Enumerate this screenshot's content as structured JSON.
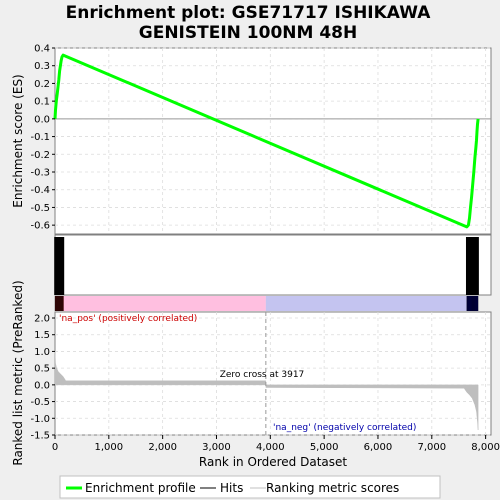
{
  "chart_data": {
    "type": "line",
    "title_line1": "Enrichment plot: GSE71717 ISHIKAWA",
    "title_line2": "GENISTEIN 100NM 48H",
    "top_panel": {
      "ylabel": "Enrichment score (ES)",
      "ylim": [
        -0.65,
        0.4
      ],
      "yticks": [
        0.4,
        0.3,
        0.2,
        0.1,
        0.0,
        -0.1,
        -0.2,
        -0.3,
        -0.4,
        -0.5,
        -0.6
      ],
      "ytick_labels": [
        "0.4",
        "0.3",
        "0.2",
        "0.1",
        "0.0",
        "-0.1",
        "-0.2",
        "-0.3",
        "-0.4",
        "-0.5",
        "-0.6"
      ],
      "series": [
        {
          "x": [
            0,
            10,
            25,
            40,
            55,
            70,
            85,
            100,
            115,
            130,
            150,
            7650,
            7680,
            7700,
            7720,
            7740,
            7760,
            7780,
            7800,
            7820,
            7830,
            7840,
            7850,
            7860
          ],
          "y": [
            0.0,
            0.05,
            0.1,
            0.14,
            0.18,
            0.22,
            0.27,
            0.3,
            0.33,
            0.35,
            0.36,
            -0.61,
            -0.6,
            -0.56,
            -0.5,
            -0.44,
            -0.37,
            -0.3,
            -0.22,
            -0.16,
            -0.12,
            -0.07,
            -0.03,
            0.0
          ]
        }
      ]
    },
    "hits_panel": {
      "hit_positions": [
        0,
        6,
        12,
        18,
        24,
        30,
        36,
        42,
        48,
        54,
        60,
        66,
        72,
        78,
        84,
        90,
        96,
        102,
        108,
        114,
        120,
        126,
        132,
        138,
        144,
        150,
        156,
        7650,
        7660,
        7670,
        7680,
        7690,
        7700,
        7710,
        7720,
        7730,
        7740,
        7750,
        7760,
        7770,
        7780,
        7790,
        7800,
        7810,
        7820,
        7830,
        7840,
        7850,
        7860
      ]
    },
    "bottom_panel": {
      "ylabel": "Ranked list metric (PreRanked)",
      "ylim": [
        -1.5,
        2.0
      ],
      "yticks": [
        2.0,
        1.5,
        1.0,
        0.5,
        0.0,
        -0.5,
        -1.0,
        -1.5
      ],
      "ytick_labels": [
        "2.0",
        "1.5",
        "1.0",
        "0.5",
        "0.0",
        "-0.5",
        "-1.0",
        "-1.5"
      ],
      "metric_x": [
        0,
        10,
        30,
        60,
        100,
        150,
        200,
        3917,
        3918,
        7600,
        7650,
        7700,
        7750,
        7800,
        7830,
        7850,
        7860
      ],
      "metric_y": [
        1.0,
        0.65,
        0.5,
        0.4,
        0.33,
        0.25,
        0.12,
        0.12,
        -0.08,
        -0.1,
        -0.22,
        -0.3,
        -0.4,
        -0.6,
        -0.8,
        -1.1,
        -1.35
      ],
      "pos_label": "'na_pos' (positively correlated)",
      "neg_label": "'na_neg' (negatively correlated)",
      "zero_cross_label": "Zero cross at 3917",
      "zero_cross": 3917
    },
    "xlabel": "Rank in Ordered Dataset",
    "xlim": [
      0,
      8100
    ],
    "xticks": [
      0,
      1000,
      2000,
      3000,
      4000,
      5000,
      6000,
      7000,
      8000
    ],
    "xtick_labels": [
      "0",
      "1,000",
      "2,000",
      "3,000",
      "4,000",
      "5,000",
      "6,000",
      "7,000",
      "8,000"
    ],
    "n_genes": 7860,
    "legend": {
      "entries": [
        "Enrichment profile",
        "Hits",
        "Ranking metric scores"
      ],
      "placement": "bottom"
    },
    "colors": {
      "profile": "#00ff00",
      "hits": "#000000",
      "metric": "#bebebe",
      "pos_text": "#cc0000",
      "neg_text": "#0000aa",
      "pos_band": "#ffbfe0",
      "neg_band": "#c4c4f0",
      "pos_dark": "#cc2020",
      "neg_dark": "#000080"
    }
  }
}
